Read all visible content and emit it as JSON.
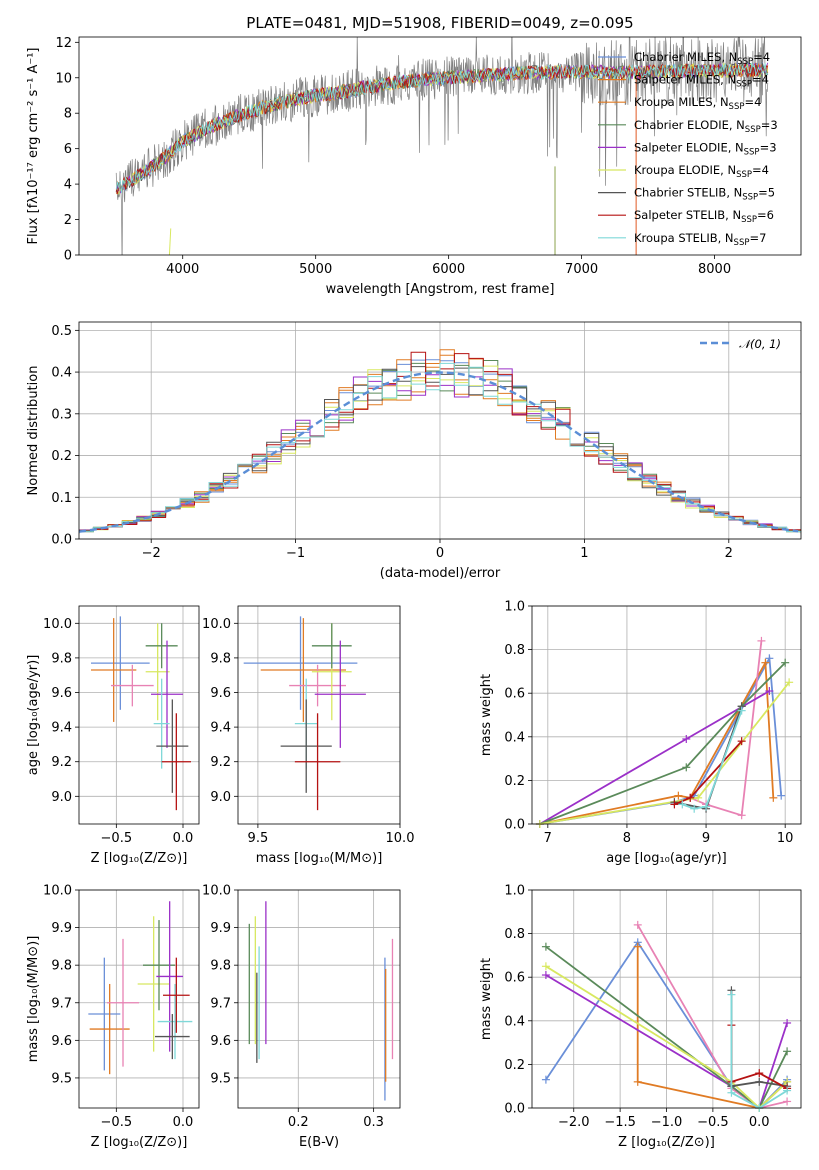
{
  "colors": {
    "series": [
      "#6a8fd8",
      "#e07b24",
      "#e07b24",
      "#5a8a5a",
      "#9b30c8",
      "#d8e860",
      "#555555",
      "#b51212",
      "#7fd8d8"
    ],
    "pink": "#e882b4",
    "normal_curve": "#5b8ed6",
    "grid": "#b0b0b0"
  },
  "chart_data": [
    {
      "id": "spectrum",
      "type": "line",
      "title": "PLATE=0481, MJD=51908, FIBERID=0049, z=0.095",
      "xlabel": "wavelength [Angstrom, rest frame]",
      "ylabel": "Flux [fλ10⁻¹⁷ erg cm⁻² s⁻¹ A⁻¹]",
      "xlim": [
        3220,
        8650
      ],
      "ylim": [
        0,
        12.3
      ],
      "xticks": [
        "4000",
        "5000",
        "6000",
        "7000",
        "8000"
      ],
      "yticks": [
        "0",
        "2",
        "4",
        "6",
        "8",
        "10",
        "12"
      ],
      "legend_position": "top-right",
      "legend": [
        {
          "prefix": "Chabrier MILES, N",
          "sub": "SSP",
          "suffix": "=4",
          "color": "#6a8fd8"
        },
        {
          "prefix": "Salpeter MILES, N",
          "sub": "SSP",
          "suffix": "=4",
          "color": "#e07b24"
        },
        {
          "prefix": "Kroupa MILES, N",
          "sub": "SSP",
          "suffix": "=4",
          "color": "#e07b24"
        },
        {
          "prefix": "Chabrier ELODIE, N",
          "sub": "SSP",
          "suffix": "=3",
          "color": "#5a8a5a"
        },
        {
          "prefix": "Salpeter ELODIE, N",
          "sub": "SSP",
          "suffix": "=3",
          "color": "#9b30c8"
        },
        {
          "prefix": "Kroupa ELODIE, N",
          "sub": "SSP",
          "suffix": "=4",
          "color": "#d8e860"
        },
        {
          "prefix": "Chabrier STELIB, N",
          "sub": "SSP",
          "suffix": "=5",
          "color": "#555555"
        },
        {
          "prefix": "Salpeter STELIB, N",
          "sub": "SSP",
          "suffix": "=6",
          "color": "#b51212"
        },
        {
          "prefix": "Kroupa STELIB, N",
          "sub": "SSP",
          "suffix": "=7",
          "color": "#7fd8d8"
        }
      ],
      "continuum": {
        "x": [
          3500,
          3700,
          3900,
          4000,
          4200,
          4400,
          4600,
          4800,
          5000,
          5200,
          5400,
          5600,
          5800,
          6000,
          6200,
          6400,
          6600,
          6800,
          7000,
          7200,
          7400,
          7600,
          7800,
          8000,
          8200,
          8400
        ],
        "y": [
          3.7,
          4.6,
          5.7,
          6.4,
          7.2,
          7.8,
          8.3,
          8.7,
          9.0,
          9.2,
          9.5,
          9.7,
          9.9,
          10.0,
          10.1,
          10.2,
          10.3,
          10.3,
          10.35,
          10.3,
          10.3,
          10.35,
          10.4,
          10.4,
          10.45,
          10.45
        ]
      },
      "observed_noise_scale": 1.2
    },
    {
      "id": "residuals",
      "type": "histogram",
      "xlabel": "(data-model)/error",
      "ylabel": "Normed distribution",
      "xlim": [
        -2.5,
        2.5
      ],
      "ylim": [
        0,
        0.52
      ],
      "xticks": [
        "−2",
        "−1",
        "0",
        "1",
        "2"
      ],
      "yticks": [
        "0.0",
        "0.1",
        "0.2",
        "0.3",
        "0.4",
        "0.5"
      ],
      "bin_width": 0.1,
      "legend_label": "𝒩(0, 1)",
      "legend_position": "top-right"
    },
    {
      "id": "age-vs-Z",
      "type": "scatter",
      "xlabel": "Z [log₁₀(Z/Z⊙)]",
      "ylabel": "age  [log₁₀(age/yr)]",
      "xlim": [
        -0.78,
        0.12
      ],
      "ylim": [
        8.84,
        10.1
      ],
      "xticks": [
        {
          "v": -0.5,
          "t": "−0.5"
        },
        {
          "v": 0,
          "t": "0.0"
        }
      ],
      "yticks": [
        {
          "v": 9.0,
          "t": "9.0"
        },
        {
          "v": 9.2,
          "t": "9.2"
        },
        {
          "v": 9.4,
          "t": "9.4"
        },
        {
          "v": 9.6,
          "t": "9.6"
        },
        {
          "v": 9.8,
          "t": "9.8"
        },
        {
          "v": 10.0,
          "t": "10.0"
        }
      ],
      "crosses": [
        {
          "x": -0.47,
          "xerr": 0.22,
          "y": 9.77,
          "yerr": 0.27,
          "color": "#6a8fd8"
        },
        {
          "x": -0.52,
          "xerr": 0.17,
          "y": 9.73,
          "yerr": 0.3,
          "color": "#e07b24"
        },
        {
          "x": -0.38,
          "xerr": 0.16,
          "y": 9.64,
          "yerr": 0.12,
          "color": "#e882b4"
        },
        {
          "x": -0.19,
          "xerr": 0.09,
          "y": 9.72,
          "yerr": 0.28,
          "color": "#d8e860"
        },
        {
          "x": -0.16,
          "xerr": 0.12,
          "y": 9.87,
          "yerr": 0.13,
          "color": "#5a8a5a"
        },
        {
          "x": -0.12,
          "xerr": 0.12,
          "y": 9.59,
          "yerr": 0.31,
          "color": "#9b30c8"
        },
        {
          "x": -0.16,
          "xerr": 0.06,
          "y": 9.42,
          "yerr": 0.26,
          "color": "#7fd8d8"
        },
        {
          "x": -0.08,
          "xerr": 0.12,
          "y": 9.29,
          "yerr": 0.27,
          "color": "#555555"
        },
        {
          "x": -0.05,
          "xerr": 0.11,
          "y": 9.2,
          "yerr": 0.28,
          "color": "#b51212"
        }
      ]
    },
    {
      "id": "age-vs-mass",
      "type": "scatter",
      "xlabel": "mass [log₁₀(M/M⊙)]",
      "ylabel": "",
      "xlim": [
        9.43,
        10.0
      ],
      "ylim": [
        8.84,
        10.1
      ],
      "xticks": [
        {
          "v": 9.5,
          "t": "9.5"
        },
        {
          "v": 10.0,
          "t": "10.0"
        }
      ],
      "yticks": [
        {
          "v": 9.0,
          "t": "9.0"
        },
        {
          "v": 9.2,
          "t": "9.2"
        },
        {
          "v": 9.4,
          "t": "9.4"
        },
        {
          "v": 9.6,
          "t": "9.6"
        },
        {
          "v": 9.8,
          "t": "9.8"
        },
        {
          "v": 10.0,
          "t": "10.0"
        }
      ],
      "crosses": [
        {
          "x": 9.65,
          "xerr": 0.2,
          "y": 9.77,
          "yerr": 0.27,
          "color": "#6a8fd8"
        },
        {
          "x": 9.66,
          "xerr": 0.15,
          "y": 9.73,
          "yerr": 0.3,
          "color": "#e07b24"
        },
        {
          "x": 9.71,
          "xerr": 0.1,
          "y": 9.64,
          "yerr": 0.12,
          "color": "#e882b4"
        },
        {
          "x": 9.76,
          "xerr": 0.07,
          "y": 9.72,
          "yerr": 0.28,
          "color": "#d8e860"
        },
        {
          "x": 9.76,
          "xerr": 0.07,
          "y": 9.87,
          "yerr": 0.13,
          "color": "#5a8a5a"
        },
        {
          "x": 9.79,
          "xerr": 0.09,
          "y": 9.59,
          "yerr": 0.31,
          "color": "#9b30c8"
        },
        {
          "x": 9.67,
          "xerr": 0.04,
          "y": 9.42,
          "yerr": 0.26,
          "color": "#7fd8d8"
        },
        {
          "x": 9.67,
          "xerr": 0.09,
          "y": 9.29,
          "yerr": 0.27,
          "color": "#555555"
        },
        {
          "x": 9.71,
          "xerr": 0.08,
          "y": 9.2,
          "yerr": 0.28,
          "color": "#b51212"
        }
      ]
    },
    {
      "id": "weight-vs-age",
      "type": "line",
      "xlabel": "age  [log₁₀(age/yr)]",
      "ylabel": "mass weight",
      "xlim": [
        6.8,
        10.2
      ],
      "ylim": [
        0,
        1.0
      ],
      "xticks": [
        {
          "v": 7,
          "t": "7"
        },
        {
          "v": 8,
          "t": "8"
        },
        {
          "v": 9,
          "t": "9"
        },
        {
          "v": 10,
          "t": "10"
        }
      ],
      "yticks": [
        {
          "v": 0,
          "t": "0.0"
        },
        {
          "v": 0.2,
          "t": "0.2"
        },
        {
          "v": 0.4,
          "t": "0.4"
        },
        {
          "v": 0.6,
          "t": "0.6"
        },
        {
          "v": 0.8,
          "t": "0.8"
        },
        {
          "v": 1.0,
          "t": "1.0"
        }
      ],
      "series": [
        {
          "color": "#6a8fd8",
          "x": [
            6.9,
            8.6,
            8.85,
            9.8,
            9.95
          ],
          "y": [
            0.0,
            0.1,
            0.13,
            0.76,
            0.13
          ]
        },
        {
          "color": "#e07b24",
          "x": [
            6.9,
            8.65,
            8.8,
            9.75,
            9.85
          ],
          "y": [
            0.0,
            0.13,
            0.12,
            0.74,
            0.12
          ]
        },
        {
          "color": "#e882b4",
          "x": [
            8.8,
            9.0,
            9.45,
            9.7
          ],
          "y": [
            0.12,
            0.09,
            0.04,
            0.84
          ]
        },
        {
          "color": "#9b30c8",
          "x": [
            6.9,
            8.75,
            9.8
          ],
          "y": [
            0.0,
            0.39,
            0.61
          ]
        },
        {
          "color": "#5a8a5a",
          "x": [
            6.9,
            8.75,
            9.45,
            10.0
          ],
          "y": [
            0.0,
            0.26,
            0.54,
            0.74
          ]
        },
        {
          "color": "#d8e860",
          "x": [
            6.9,
            8.9,
            10.05
          ],
          "y": [
            0.0,
            0.12,
            0.65
          ]
        },
        {
          "color": "#555555",
          "x": [
            8.6,
            9.0,
            9.45
          ],
          "y": [
            0.1,
            0.07,
            0.54
          ]
        },
        {
          "color": "#b51212",
          "x": [
            8.6,
            8.8,
            9.45
          ],
          "y": [
            0.09,
            0.12,
            0.38
          ]
        },
        {
          "color": "#7fd8d8",
          "x": [
            8.7,
            8.85,
            9.0,
            9.45
          ],
          "y": [
            0.09,
            0.07,
            0.08,
            0.52
          ]
        }
      ]
    },
    {
      "id": "mass-vs-Z",
      "type": "scatter",
      "xlabel": "Z [log₁₀(Z/Z⊙)]",
      "ylabel": "mass [log₁₀(M/M⊙)]",
      "xlim": [
        -0.78,
        0.12
      ],
      "ylim": [
        9.42,
        10.0
      ],
      "xticks": [
        {
          "v": -0.5,
          "t": "−0.5"
        },
        {
          "v": 0,
          "t": "0.0"
        }
      ],
      "yticks": [
        {
          "v": 9.5,
          "t": "9.5"
        },
        {
          "v": 9.6,
          "t": "9.6"
        },
        {
          "v": 9.7,
          "t": "9.7"
        },
        {
          "v": 9.8,
          "t": "9.8"
        },
        {
          "v": 9.9,
          "t": "9.9"
        },
        {
          "v": 10.0,
          "t": "10.0"
        }
      ],
      "crosses": [
        {
          "x": -0.59,
          "xerr": 0.12,
          "y": 9.67,
          "yerr": 0.15,
          "color": "#6a8fd8"
        },
        {
          "x": -0.55,
          "xerr": 0.15,
          "y": 9.63,
          "yerr": 0.12,
          "color": "#e07b24"
        },
        {
          "x": -0.45,
          "xerr": 0.12,
          "y": 9.7,
          "yerr": 0.17,
          "color": "#e882b4"
        },
        {
          "x": -0.22,
          "xerr": 0.12,
          "y": 9.75,
          "yerr": 0.18,
          "color": "#d8e860"
        },
        {
          "x": -0.18,
          "xerr": 0.12,
          "y": 9.8,
          "yerr": 0.12,
          "color": "#5a8a5a"
        },
        {
          "x": -0.1,
          "xerr": 0.1,
          "y": 9.77,
          "yerr": 0.2,
          "color": "#9b30c8"
        },
        {
          "x": -0.06,
          "xerr": 0.13,
          "y": 9.65,
          "yerr": 0.1,
          "color": "#7fd8d8"
        },
        {
          "x": -0.08,
          "xerr": 0.13,
          "y": 9.61,
          "yerr": 0.06,
          "color": "#555555"
        },
        {
          "x": -0.05,
          "xerr": 0.1,
          "y": 9.72,
          "yerr": 0.1,
          "color": "#b51212"
        }
      ]
    },
    {
      "id": "mass-vs-EBV",
      "type": "scatter",
      "xlabel": "E(B-V)",
      "ylabel": "",
      "xlim": [
        0.12,
        0.335
      ],
      "ylim": [
        9.42,
        10.0
      ],
      "xticks": [
        {
          "v": 0.2,
          "t": "0.2"
        },
        {
          "v": 0.3,
          "t": "0.3"
        }
      ],
      "yticks": [
        {
          "v": 9.5,
          "t": "9.5"
        },
        {
          "v": 9.6,
          "t": "9.6"
        },
        {
          "v": 9.7,
          "t": "9.7"
        },
        {
          "v": 9.8,
          "t": "9.8"
        },
        {
          "v": 9.9,
          "t": "9.9"
        },
        {
          "v": 10.0,
          "t": "10.0"
        }
      ],
      "crosses": [
        {
          "x": 0.315,
          "xerr": 0,
          "y": 9.63,
          "yerr": 0.19,
          "color": "#6a8fd8"
        },
        {
          "x": 0.316,
          "xerr": 0,
          "y": 9.64,
          "yerr": 0.15,
          "color": "#e07b24"
        },
        {
          "x": 0.325,
          "xerr": 0,
          "y": 9.71,
          "yerr": 0.16,
          "color": "#e882b4"
        },
        {
          "x": 0.143,
          "xerr": 0,
          "y": 9.76,
          "yerr": 0.17,
          "color": "#d8e860"
        },
        {
          "x": 0.135,
          "xerr": 0,
          "y": 9.75,
          "yerr": 0.16,
          "color": "#5a8a5a"
        },
        {
          "x": 0.157,
          "xerr": 0,
          "y": 9.78,
          "yerr": 0.19,
          "color": "#9b30c8"
        },
        {
          "x": 0.148,
          "xerr": 0,
          "y": 9.7,
          "yerr": 0.15,
          "color": "#7fd8d8"
        },
        {
          "x": 0.145,
          "xerr": 0,
          "y": 9.66,
          "yerr": 0.12,
          "color": "#555555"
        }
      ]
    },
    {
      "id": "weight-vs-Z",
      "type": "line",
      "xlabel": "Z [log₁₀(Z/Z⊙)]",
      "ylabel": "mass weight",
      "xlim": [
        -2.45,
        0.45
      ],
      "ylim": [
        0,
        1.0
      ],
      "xticks": [
        {
          "v": -2.0,
          "t": "−2.0"
        },
        {
          "v": -1.5,
          "t": "−1.5"
        },
        {
          "v": -1.0,
          "t": "−1.0"
        },
        {
          "v": -0.5,
          "t": "−0.5"
        },
        {
          "v": 0.0,
          "t": "0.0"
        }
      ],
      "yticks": [
        {
          "v": 0,
          "t": "0.0"
        },
        {
          "v": 0.2,
          "t": "0.2"
        },
        {
          "v": 0.4,
          "t": "0.4"
        },
        {
          "v": 0.6,
          "t": "0.6"
        },
        {
          "v": 0.8,
          "t": "0.8"
        },
        {
          "v": 1.0,
          "t": "1.0"
        }
      ],
      "series": [
        {
          "color": "#6a8fd8",
          "x": [
            -2.3,
            -1.31,
            -0.3,
            0.0,
            0.3
          ],
          "y": [
            0.13,
            0.76,
            0.1,
            0.0,
            0.13
          ]
        },
        {
          "color": "#e07b24",
          "x": [
            -1.31,
            -1.31,
            0.0,
            0.3
          ],
          "y": [
            0.74,
            0.12,
            0.0,
            0.12
          ]
        },
        {
          "color": "#e882b4",
          "x": [
            -1.31,
            -0.3,
            0.0,
            0.3
          ],
          "y": [
            0.84,
            0.09,
            0.0,
            0.03
          ]
        },
        {
          "color": "#9b30c8",
          "x": [
            -2.3,
            -0.3,
            0.0,
            0.3
          ],
          "y": [
            0.61,
            0.1,
            0.0,
            0.39
          ]
        },
        {
          "color": "#5a8a5a",
          "x": [
            -2.3,
            -0.3,
            0.0,
            0.3
          ],
          "y": [
            0.74,
            0.1,
            0.0,
            0.26
          ]
        },
        {
          "color": "#d8e860",
          "x": [
            -2.3,
            -0.3,
            0.0,
            0.3
          ],
          "y": [
            0.65,
            0.12,
            0.0,
            0.12
          ]
        },
        {
          "color": "#555555",
          "x": [
            -0.3,
            -0.3,
            0.0,
            0.3
          ],
          "y": [
            0.54,
            0.1,
            0.12,
            0.1
          ]
        },
        {
          "color": "#b51212",
          "x": [
            -0.3,
            -0.3,
            0.0,
            0.3
          ],
          "y": [
            0.38,
            0.12,
            0.16,
            0.09
          ]
        },
        {
          "color": "#7fd8d8",
          "x": [
            -0.3,
            -0.3,
            0.0,
            0.3
          ],
          "y": [
            0.52,
            0.07,
            0.0,
            0.08
          ]
        }
      ]
    }
  ]
}
